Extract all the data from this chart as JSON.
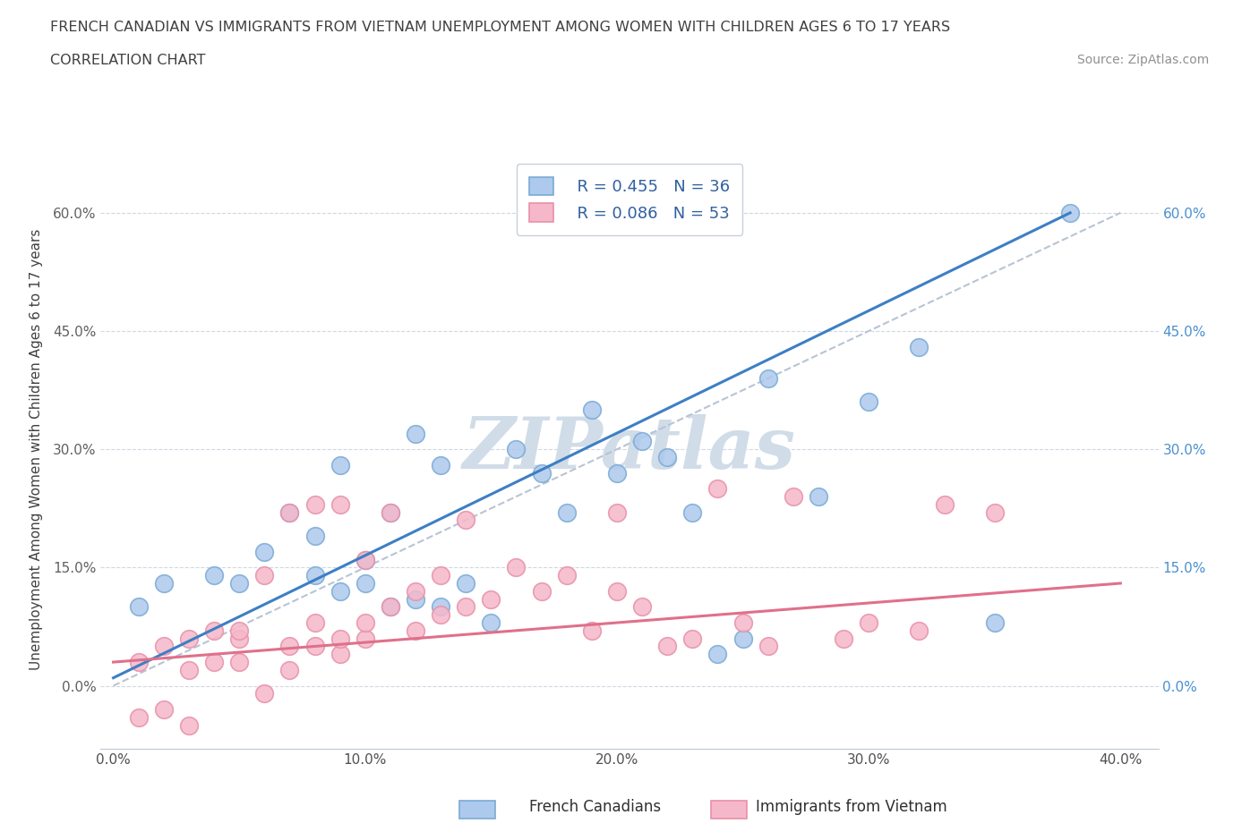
{
  "title_line1": "FRENCH CANADIAN VS IMMIGRANTS FROM VIETNAM UNEMPLOYMENT AMONG WOMEN WITH CHILDREN AGES 6 TO 17 YEARS",
  "title_line2": "CORRELATION CHART",
  "source_text": "Source: ZipAtlas.com",
  "ylabel": "Unemployment Among Women with Children Ages 6 to 17 years",
  "xlim": [
    -0.005,
    0.415
  ],
  "ylim": [
    -0.08,
    0.68
  ],
  "ytick_labels": [
    "0.0%",
    "15.0%",
    "30.0%",
    "45.0%",
    "60.0%"
  ],
  "ytick_vals": [
    0.0,
    0.15,
    0.3,
    0.45,
    0.6
  ],
  "xtick_labels": [
    "0.0%",
    "10.0%",
    "20.0%",
    "30.0%",
    "40.0%"
  ],
  "xtick_vals": [
    0.0,
    0.1,
    0.2,
    0.3,
    0.4
  ],
  "legend_r1": "R = 0.455",
  "legend_n1": "N = 36",
  "legend_r2": "R = 0.086",
  "legend_n2": "N = 53",
  "blue_color": "#adc9ed",
  "blue_edge": "#7aaad4",
  "pink_color": "#f5b8ca",
  "pink_edge": "#e890a8",
  "blue_line_color": "#3d7fc4",
  "pink_line_color": "#e0708a",
  "dashed_line_color": "#b8c4d4",
  "watermark_color": "#d0dce8",
  "title_color": "#404040",
  "source_color": "#909090",
  "blue_scatter_x": [
    0.01,
    0.02,
    0.04,
    0.05,
    0.06,
    0.07,
    0.08,
    0.08,
    0.09,
    0.09,
    0.1,
    0.1,
    0.11,
    0.11,
    0.12,
    0.12,
    0.13,
    0.13,
    0.14,
    0.15,
    0.16,
    0.17,
    0.18,
    0.19,
    0.2,
    0.21,
    0.22,
    0.23,
    0.24,
    0.25,
    0.26,
    0.28,
    0.3,
    0.32,
    0.35,
    0.38
  ],
  "blue_scatter_y": [
    0.1,
    0.13,
    0.14,
    0.13,
    0.17,
    0.22,
    0.14,
    0.19,
    0.12,
    0.28,
    0.13,
    0.16,
    0.1,
    0.22,
    0.11,
    0.32,
    0.1,
    0.28,
    0.13,
    0.08,
    0.3,
    0.27,
    0.22,
    0.35,
    0.27,
    0.31,
    0.29,
    0.22,
    0.04,
    0.06,
    0.39,
    0.24,
    0.36,
    0.43,
    0.08,
    0.6
  ],
  "pink_scatter_x": [
    0.01,
    0.01,
    0.02,
    0.02,
    0.03,
    0.03,
    0.03,
    0.04,
    0.04,
    0.05,
    0.05,
    0.05,
    0.06,
    0.06,
    0.07,
    0.07,
    0.07,
    0.08,
    0.08,
    0.08,
    0.09,
    0.09,
    0.09,
    0.1,
    0.1,
    0.1,
    0.11,
    0.11,
    0.12,
    0.12,
    0.13,
    0.13,
    0.14,
    0.14,
    0.15,
    0.16,
    0.17,
    0.18,
    0.19,
    0.2,
    0.2,
    0.21,
    0.22,
    0.23,
    0.24,
    0.25,
    0.26,
    0.27,
    0.29,
    0.3,
    0.32,
    0.33,
    0.35
  ],
  "pink_scatter_y": [
    -0.04,
    0.03,
    -0.03,
    0.05,
    0.02,
    -0.05,
    0.06,
    0.03,
    0.07,
    0.03,
    0.06,
    0.07,
    -0.01,
    0.14,
    0.02,
    0.05,
    0.22,
    0.05,
    0.08,
    0.23,
    0.04,
    0.06,
    0.23,
    0.06,
    0.08,
    0.16,
    0.1,
    0.22,
    0.07,
    0.12,
    0.09,
    0.14,
    0.1,
    0.21,
    0.11,
    0.15,
    0.12,
    0.14,
    0.07,
    0.12,
    0.22,
    0.1,
    0.05,
    0.06,
    0.25,
    0.08,
    0.05,
    0.24,
    0.06,
    0.08,
    0.07,
    0.23,
    0.22
  ],
  "blue_line_x": [
    0.0,
    0.38
  ],
  "blue_line_y": [
    0.01,
    0.6
  ],
  "pink_line_x": [
    0.0,
    0.4
  ],
  "pink_line_y": [
    0.03,
    0.13
  ],
  "diag_line_x": [
    0.0,
    0.4
  ],
  "diag_line_y": [
    0.0,
    0.6
  ]
}
